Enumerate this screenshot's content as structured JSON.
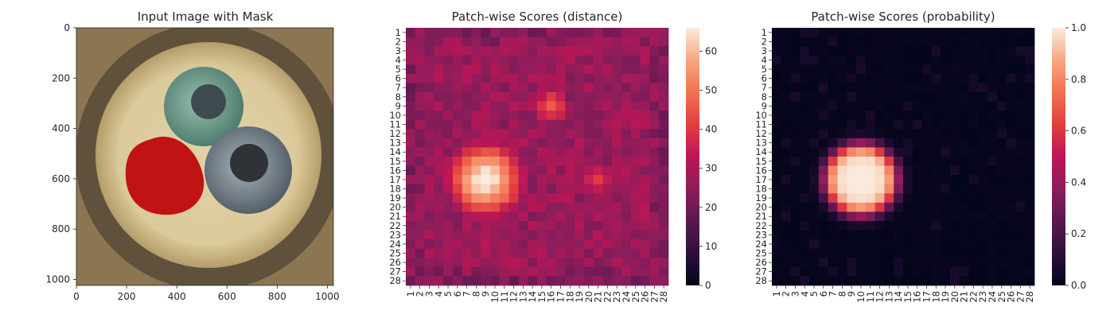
{
  "chart_data": [
    {
      "type": "image",
      "title": "Input Image with Mask",
      "xlim": [
        0,
        1024
      ],
      "ylim": [
        1024,
        0
      ],
      "x_ticks": [
        0,
        200,
        400,
        600,
        800,
        1000
      ],
      "y_ticks": [
        0,
        200,
        400,
        600,
        800,
        1000
      ],
      "image_description_items": [
        "cable cross-section",
        "green-wire",
        "gray-wire",
        "red mask overlay"
      ],
      "mask_color": "#c01414"
    },
    {
      "type": "heatmap",
      "title": "Patch-wise Scores (distance)",
      "x_categories": [
        "1",
        "2",
        "3",
        "4",
        "5",
        "6",
        "7",
        "8",
        "9",
        "10",
        "11",
        "12",
        "13",
        "14",
        "15",
        "16",
        "17",
        "18",
        "19",
        "20",
        "21",
        "22",
        "23",
        "24",
        "25",
        "26",
        "27",
        "28"
      ],
      "y_categories": [
        "1",
        "2",
        "3",
        "4",
        "5",
        "6",
        "7",
        "8",
        "9",
        "10",
        "11",
        "12",
        "13",
        "14",
        "15",
        "16",
        "17",
        "18",
        "19",
        "20",
        "21",
        "22",
        "23",
        "24",
        "25",
        "26",
        "27",
        "28"
      ],
      "colorbar": {
        "min": 0,
        "max": 66,
        "ticks": [
          0,
          10,
          20,
          30,
          40,
          50,
          60
        ]
      },
      "colormap": "rocket",
      "hotspots": [
        {
          "row": 17,
          "col": 9,
          "value": 66,
          "radius": 3.4
        },
        {
          "row": 9,
          "col": 16,
          "value": 44,
          "radius": 2.0
        },
        {
          "row": 17,
          "col": 21,
          "value": 40,
          "radius": 1.8
        }
      ],
      "baseline": 27
    },
    {
      "type": "heatmap",
      "title": "Patch-wise Scores (probability)",
      "x_categories": [
        "1",
        "2",
        "3",
        "4",
        "5",
        "6",
        "7",
        "8",
        "9",
        "10",
        "11",
        "12",
        "13",
        "14",
        "15",
        "16",
        "17",
        "18",
        "19",
        "20",
        "21",
        "22",
        "23",
        "24",
        "25",
        "26",
        "27",
        "28"
      ],
      "y_categories": [
        "1",
        "2",
        "3",
        "4",
        "5",
        "6",
        "7",
        "8",
        "9",
        "10",
        "11",
        "12",
        "13",
        "14",
        "15",
        "16",
        "17",
        "18",
        "19",
        "20",
        "21",
        "22",
        "23",
        "24",
        "25",
        "26",
        "27",
        "28"
      ],
      "colorbar": {
        "min": 0.0,
        "max": 1.0,
        "ticks": [
          "0.0",
          "0.2",
          "0.4",
          "0.6",
          "0.8",
          "1.0"
        ]
      },
      "colormap": "rocket",
      "hotspots": [
        {
          "row": 17,
          "col": 10,
          "value": 1.0,
          "radius": 3.8
        }
      ],
      "baseline": 0.02
    }
  ]
}
